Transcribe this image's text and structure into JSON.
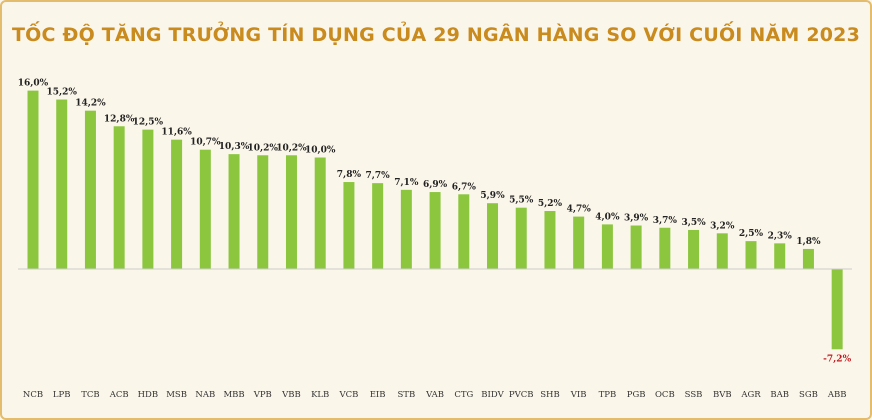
{
  "chart_data": {
    "type": "bar",
    "title": "TỐC ĐỘ TĂNG TRƯỞNG TÍN DỤNG CỦA 29 NGÂN HÀNG SO VỚI CUỐI NĂM 2023",
    "xlabel": "",
    "ylabel": "",
    "ylim": [
      -7.2,
      16.0
    ],
    "grid": false,
    "legend": "none",
    "bar_color": "#8cc63f",
    "negative_label_color": "#c0181f",
    "title_color": "#c98a1e",
    "categories": [
      "NCB",
      "LPB",
      "TCB",
      "ACB",
      "HDB",
      "MSB",
      "NAB",
      "MBB",
      "VPB",
      "VBB",
      "KLB",
      "VCB",
      "EIB",
      "STB",
      "VAB",
      "CTG",
      "BIDV",
      "PVCB",
      "SHB",
      "VIB",
      "TPB",
      "PGB",
      "OCB",
      "SSB",
      "BVB",
      "AGR",
      "BAB",
      "SGB",
      "ABB"
    ],
    "values": [
      16.0,
      15.2,
      14.2,
      12.8,
      12.5,
      11.6,
      10.7,
      10.3,
      10.2,
      10.2,
      10.0,
      7.8,
      7.7,
      7.1,
      6.9,
      6.7,
      5.9,
      5.5,
      5.2,
      4.7,
      4.0,
      3.9,
      3.7,
      3.5,
      3.2,
      2.5,
      2.3,
      1.8,
      -7.2
    ],
    "value_labels": [
      "16,0%",
      "15,2%",
      "14,2%",
      "12,8%",
      "12,5%",
      "11,6%",
      "10,7%",
      "10,3%",
      "10,2%",
      "10,2%",
      "10,0%",
      "7,8%",
      "7,7%",
      "7,1%",
      "6,9%",
      "6,7%",
      "5,9%",
      "5,5%",
      "5,2%",
      "4,7%",
      "4,0%",
      "3,9%",
      "3,7%",
      "3,5%",
      "3,2%",
      "2,5%",
      "2,3%",
      "1,8%",
      "-7,2%"
    ]
  }
}
